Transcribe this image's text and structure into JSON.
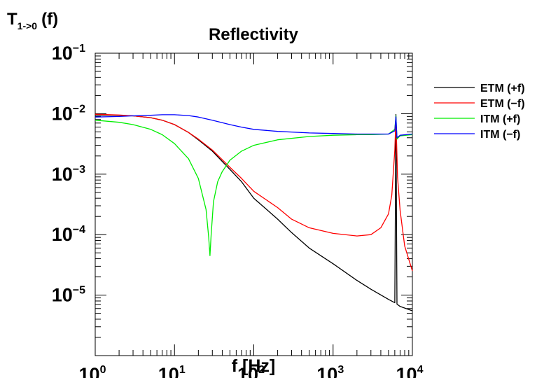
{
  "chart_data": {
    "type": "line",
    "title": "Reflectivity",
    "xlabel": "f [Hz]",
    "ylabel": {
      "base": "T",
      "subscript": "1->0",
      "suffix": "(f)"
    },
    "x_scale": "log",
    "y_scale": "log",
    "xlim": [
      1,
      10000
    ],
    "ylim": [
      1e-06,
      0.1
    ],
    "x_ticks": [
      {
        "value": 1,
        "base": "10",
        "exp": "0"
      },
      {
        "value": 10,
        "base": "10",
        "exp": "1"
      },
      {
        "value": 100,
        "base": "10",
        "exp": "2"
      },
      {
        "value": 1000,
        "base": "10",
        "exp": "3"
      },
      {
        "value": 10000,
        "base": "10",
        "exp": "4"
      }
    ],
    "y_ticks": [
      {
        "value": 0.1,
        "base": "10",
        "exp": "−1"
      },
      {
        "value": 0.01,
        "base": "10",
        "exp": "−2"
      },
      {
        "value": 0.001,
        "base": "10",
        "exp": "−3"
      },
      {
        "value": 0.0001,
        "base": "10",
        "exp": "−4"
      },
      {
        "value": 1e-05,
        "base": "10",
        "exp": "−5"
      }
    ],
    "grid": false,
    "legend_position": "right",
    "series": [
      {
        "name": "ETM (+f)",
        "color": "#000000",
        "x": [
          1,
          2,
          3,
          5,
          7,
          10,
          15,
          20,
          30,
          50,
          70,
          100,
          200,
          300,
          500,
          1000,
          2000,
          3000,
          5000,
          6000,
          6200,
          6400,
          7000,
          10000
        ],
        "y": [
          0.0095,
          0.0094,
          0.0092,
          0.0086,
          0.0078,
          0.0066,
          0.0049,
          0.0037,
          0.0024,
          0.0012,
          0.00075,
          0.0004,
          0.00018,
          0.000108,
          6e-05,
          3.3e-05,
          1.75e-05,
          1.25e-05,
          8.5e-06,
          7.5e-06,
          0.0097,
          7.1e-06,
          6.5e-06,
          5.5e-06
        ]
      },
      {
        "name": "ETM (−f)",
        "color": "#ff0000",
        "x": [
          1,
          2,
          3,
          5,
          7,
          10,
          15,
          20,
          30,
          50,
          70,
          100,
          200,
          300,
          500,
          1000,
          2000,
          3000,
          4000,
          5000,
          5500,
          6000,
          6200,
          6500,
          7000,
          8000,
          10000
        ],
        "y": [
          0.0098,
          0.0095,
          0.0092,
          0.0086,
          0.0078,
          0.0066,
          0.0049,
          0.0038,
          0.0025,
          0.0013,
          0.00085,
          0.00052,
          0.00028,
          0.00018,
          0.00013,
          0.000105,
          9.5e-05,
          0.0001,
          0.00013,
          0.00022,
          0.00045,
          0.0025,
          0.0088,
          0.0009,
          0.00025,
          6.5e-05,
          2.5e-05
        ]
      },
      {
        "name": "ITM (+f)",
        "color": "#00ee00",
        "x": [
          1,
          2,
          3,
          5,
          7,
          10,
          15,
          20,
          25,
          27,
          28,
          29,
          31,
          35,
          40,
          50,
          70,
          100,
          200,
          500,
          1000,
          2000,
          3000,
          5000,
          6000,
          6200,
          6400,
          7000,
          10000
        ],
        "y": [
          0.0078,
          0.0072,
          0.0066,
          0.0055,
          0.0045,
          0.0032,
          0.0018,
          0.00085,
          0.00026,
          9e-05,
          4.5e-05,
          0.0001,
          0.00035,
          0.00075,
          0.0011,
          0.0017,
          0.0024,
          0.003,
          0.0037,
          0.0042,
          0.0044,
          0.0045,
          0.0045,
          0.0046,
          0.0055,
          0.0092,
          0.0038,
          0.0043,
          0.0045
        ]
      },
      {
        "name": "ITM (−f)",
        "color": "#0000ff",
        "x": [
          1,
          2,
          3,
          5,
          7,
          10,
          15,
          20,
          30,
          50,
          70,
          100,
          200,
          500,
          1000,
          2000,
          3000,
          5000,
          6000,
          6200,
          6400,
          7000,
          10000
        ],
        "y": [
          0.0088,
          0.009,
          0.0092,
          0.0094,
          0.0096,
          0.0096,
          0.0093,
          0.0088,
          0.0078,
          0.0066,
          0.006,
          0.0055,
          0.0051,
          0.0048,
          0.0047,
          0.0046,
          0.0046,
          0.0046,
          0.0052,
          0.0089,
          0.004,
          0.0044,
          0.0046
        ]
      }
    ]
  }
}
